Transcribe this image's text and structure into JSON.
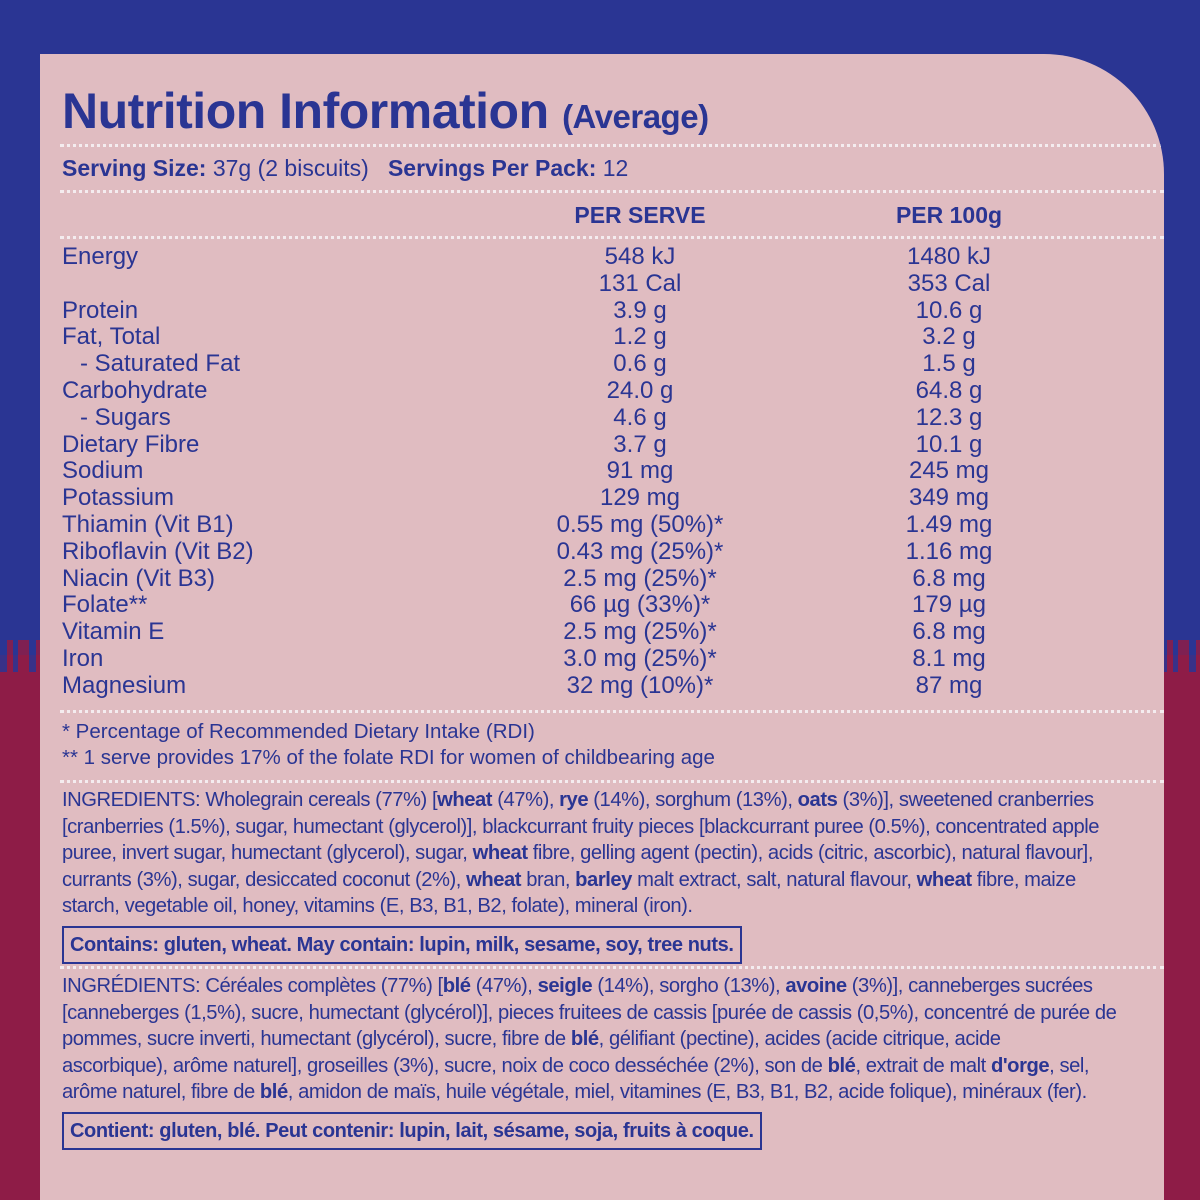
{
  "colors": {
    "blue": "#2a3593",
    "crimson": "#8e1c47",
    "panel": "#e0bcc1"
  },
  "title": {
    "main": "Nutrition Information",
    "sub": "(Average)"
  },
  "serving": {
    "size_label": "Serving Size:",
    "size_value": "37g (2 biscuits)",
    "per_pack_label": "Servings Per Pack:",
    "per_pack_value": "12"
  },
  "columns": {
    "per_serve": "PER SERVE",
    "per_100g": "PER 100g"
  },
  "rows": [
    {
      "name": "Energy",
      "per_serve": "548 kJ",
      "per_100g": "1480 kJ"
    },
    {
      "name": "",
      "per_serve": "131 Cal",
      "per_100g": "353 Cal"
    },
    {
      "name": "Protein",
      "per_serve": "3.9 g",
      "per_100g": "10.6 g"
    },
    {
      "name": "Fat, Total",
      "per_serve": "1.2 g",
      "per_100g": "3.2 g"
    },
    {
      "name": "- Saturated Fat",
      "per_serve": "0.6 g",
      "per_100g": "1.5 g"
    },
    {
      "name": "Carbohydrate",
      "per_serve": "24.0 g",
      "per_100g": "64.8 g"
    },
    {
      "name": "- Sugars",
      "per_serve": "4.6 g",
      "per_100g": "12.3 g"
    },
    {
      "name": "Dietary Fibre",
      "per_serve": "3.7 g",
      "per_100g": "10.1 g"
    },
    {
      "name": "Sodium",
      "per_serve": "91 mg",
      "per_100g": "245 mg"
    },
    {
      "name": "Potassium",
      "per_serve": "129 mg",
      "per_100g": "349 mg"
    },
    {
      "name": "Thiamin (Vit B1)",
      "per_serve": "0.55 mg (50%)*",
      "per_100g": "1.49 mg"
    },
    {
      "name": "Riboflavin (Vit B2)",
      "per_serve": "0.43 mg (25%)*",
      "per_100g": "1.16 mg"
    },
    {
      "name": "Niacin (Vit B3)",
      "per_serve": "2.5 mg (25%)*",
      "per_100g": "6.8 mg"
    },
    {
      "name": "Folate**",
      "per_serve": "66 µg (33%)*",
      "per_100g": "179 µg"
    },
    {
      "name": "Vitamin E",
      "per_serve": "2.5 mg (25%)*",
      "per_100g": "6.8 mg"
    },
    {
      "name": "Iron",
      "per_serve": "3.0 mg (25%)*",
      "per_100g": "8.1 mg"
    },
    {
      "name": "Magnesium",
      "per_serve": "32 mg (10%)*",
      "per_100g": "87 mg"
    }
  ],
  "footnotes": {
    "rdi": "* Percentage of Recommended Dietary Intake (RDI)",
    "folate": "** 1 serve provides 17% of the folate RDI for women of childbearing age"
  },
  "ingredients_en": [
    [
      [
        "INGREDIENTS: Wholegrain cereals (77%) [",
        0
      ],
      [
        "wheat",
        1
      ],
      [
        " (47%), ",
        0
      ],
      [
        "rye",
        1
      ],
      [
        " (14%), sorghum (13%), ",
        0
      ],
      [
        "oats",
        1
      ],
      [
        " (3%)], sweetened cranberries",
        0
      ]
    ],
    [
      [
        "[cranberries (1.5%), sugar, humectant (glycerol)], blackcurrant fruity pieces [blackcurrant puree (0.5%), concentrated apple",
        0
      ]
    ],
    [
      [
        "puree, invert sugar, humectant (glycerol), sugar, ",
        0
      ],
      [
        "wheat",
        1
      ],
      [
        " fibre, gelling agent (pectin), acids (citric, ascorbic), natural flavour],",
        0
      ]
    ],
    [
      [
        "currants (3%), sugar, desiccated coconut (2%), ",
        0
      ],
      [
        "wheat",
        1
      ],
      [
        " bran, ",
        0
      ],
      [
        "barley",
        1
      ],
      [
        " malt extract, salt, natural flavour, ",
        0
      ],
      [
        "wheat",
        1
      ],
      [
        " fibre, maize",
        0
      ]
    ],
    [
      [
        "starch, vegetable oil, honey, vitamins (E, B3, B1, B2, folate), mineral (iron).",
        0
      ]
    ]
  ],
  "allergens_en": "Contains: gluten, wheat.  May contain: lupin, milk, sesame, soy, tree nuts.",
  "ingredients_fr": [
    [
      [
        "INGRÉDIENTS: Céréales complètes (77%) [",
        0
      ],
      [
        "blé",
        1
      ],
      [
        " (47%), ",
        0
      ],
      [
        "seigle",
        1
      ],
      [
        " (14%), sorgho (13%), ",
        0
      ],
      [
        "avoine",
        1
      ],
      [
        " (3%)], canneberges sucrées",
        0
      ]
    ],
    [
      [
        "[canneberges (1,5%), sucre, humectant (glycérol)], pieces fruitees de cassis [purée de cassis (0,5%), concentré de purée de",
        0
      ]
    ],
    [
      [
        "pommes,  sucre inverti, humectant (glycérol), sucre, fibre de ",
        0
      ],
      [
        "blé",
        1
      ],
      [
        ", gélifiant (pectine), acides (acide citrique, acide",
        0
      ]
    ],
    [
      [
        "ascorbique), arôme naturel], groseilles (3%), sucre, noix de coco desséchée (2%), son de ",
        0
      ],
      [
        "blé",
        1
      ],
      [
        ", extrait de malt ",
        0
      ],
      [
        "d'orge",
        1
      ],
      [
        ", sel,",
        0
      ]
    ],
    [
      [
        "arôme naturel, fibre de ",
        0
      ],
      [
        "blé",
        1
      ],
      [
        ", amidon de maïs, huile végétale, miel, vitamines (E, B3, B1, B2, acide folique), minéraux (fer).",
        0
      ]
    ]
  ],
  "allergens_fr": "Contient: gluten, blé. Peut contenir: lupin, lait, sésame, soja, fruits à coque."
}
